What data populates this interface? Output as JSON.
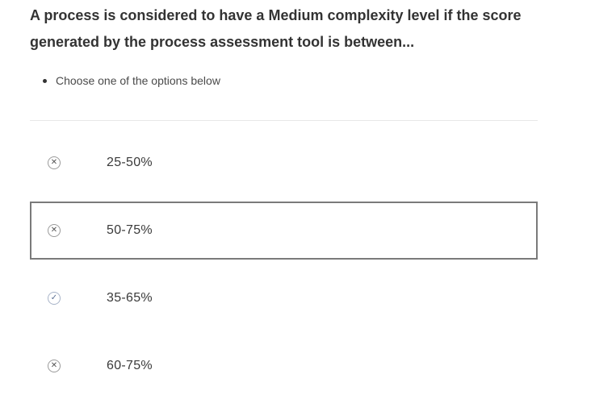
{
  "question": {
    "text": "A process is considered to have a Medium complexity level if the score generated by the process assessment tool is between..."
  },
  "hints": [
    {
      "text": "Choose one of the options below"
    }
  ],
  "options": [
    {
      "label": "25-50%",
      "icon": "close-icon",
      "selected": false
    },
    {
      "label": "50-75%",
      "icon": "close-icon",
      "selected": true
    },
    {
      "label": "35-65%",
      "icon": "check-icon",
      "selected": false
    },
    {
      "label": "60-75%",
      "icon": "close-icon",
      "selected": false
    }
  ]
}
